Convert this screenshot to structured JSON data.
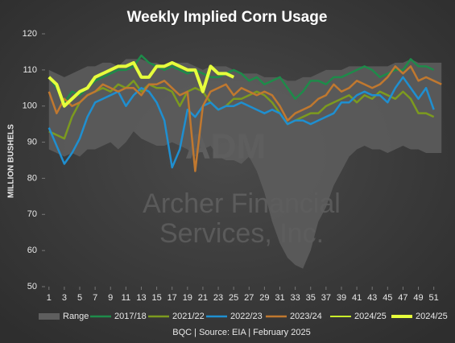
{
  "chart_data": {
    "type": "line",
    "title": "Weekly Implied Corn Usage",
    "y_label": "MILLION BUSHELS",
    "watermark": [
      "ADM",
      "Archer Financial",
      "Services, Inc."
    ],
    "footer": "BQC | Source: EIA | February 2025",
    "x": [
      1,
      2,
      3,
      4,
      5,
      6,
      7,
      8,
      9,
      10,
      11,
      12,
      13,
      14,
      15,
      16,
      17,
      18,
      19,
      20,
      21,
      22,
      23,
      24,
      25,
      26,
      27,
      28,
      29,
      30,
      31,
      32,
      33,
      34,
      35,
      36,
      37,
      38,
      39,
      40,
      41,
      42,
      43,
      44,
      45,
      46,
      47,
      48,
      49,
      50,
      51,
      52
    ],
    "xlim": [
      0.5,
      52.5
    ],
    "xticks": [
      1,
      3,
      5,
      7,
      9,
      11,
      13,
      15,
      17,
      19,
      21,
      23,
      25,
      27,
      29,
      31,
      33,
      35,
      37,
      39,
      41,
      43,
      45,
      47,
      49,
      51
    ],
    "ylim": [
      50,
      120
    ],
    "yticks": [
      50,
      60,
      70,
      80,
      90,
      100,
      110,
      120
    ],
    "range": {
      "name": "Range",
      "color": "#5e5e5e",
      "low": [
        88,
        87,
        86,
        87,
        86,
        88,
        88,
        89,
        90,
        88,
        90,
        93,
        91,
        90,
        89,
        89,
        90,
        89,
        88,
        86,
        88,
        89,
        86,
        85,
        85,
        84,
        86,
        82,
        76,
        68,
        62,
        58,
        56,
        55,
        60,
        68,
        72,
        78,
        82,
        86,
        88,
        89,
        88,
        88,
        87,
        88,
        89,
        88,
        88,
        87,
        87,
        87
      ],
      "high": [
        110,
        109,
        108,
        109,
        110,
        111,
        111,
        112,
        112,
        111,
        113,
        113,
        113,
        112,
        112,
        111,
        112,
        112,
        112,
        111,
        110,
        111,
        111,
        111,
        110,
        109,
        109,
        109,
        108,
        108,
        108,
        107,
        107,
        108,
        108,
        109,
        110,
        110,
        110,
        111,
        111,
        111,
        111,
        111,
        111,
        112,
        112,
        113,
        112,
        112,
        112,
        112
      ]
    },
    "series": [
      {
        "name": "2017/18",
        "color": "#1e8b4a",
        "width": 2.5,
        "values": [
          108,
          105,
          101,
          104,
          103,
          105,
          107,
          108,
          109,
          110,
          110,
          111,
          114,
          112,
          111,
          110,
          111,
          110,
          109,
          110,
          109,
          108,
          108,
          109,
          110,
          109,
          107,
          108,
          106,
          107,
          108,
          105,
          102,
          104,
          107,
          107,
          106,
          108,
          108,
          109,
          110,
          111,
          110,
          108,
          109,
          110,
          110,
          113,
          111,
          111,
          110,
          null
        ]
      },
      {
        "name": "2021/22",
        "color": "#7c9a1f",
        "width": 2.5,
        "values": [
          93,
          92,
          91,
          97,
          101,
          103,
          104,
          105,
          104,
          106,
          105,
          107,
          104,
          106,
          105,
          105,
          104,
          100,
          104,
          105,
          104,
          101,
          99,
          100,
          102,
          102,
          103,
          104,
          103,
          101,
          98,
          95,
          96,
          97,
          98,
          98,
          100,
          101,
          102,
          103,
          101,
          103,
          102,
          104,
          103,
          102,
          104,
          102,
          98,
          98,
          97,
          null
        ]
      },
      {
        "name": "2022/23",
        "color": "#1f8fd0",
        "width": 2.5,
        "values": [
          94,
          89,
          84,
          87,
          91,
          97,
          101,
          102,
          103,
          104,
          100,
          103,
          105,
          104,
          101,
          96,
          83,
          88,
          99,
          97,
          100,
          101,
          99,
          100,
          100,
          101,
          100,
          99,
          98,
          99,
          98,
          95,
          96,
          96,
          95,
          96,
          97,
          98,
          101,
          101,
          103,
          104,
          103,
          103,
          101,
          105,
          108,
          105,
          102,
          105,
          99,
          null
        ]
      },
      {
        "name": "2023/24",
        "color": "#c0782f",
        "width": 2.5,
        "values": [
          104,
          98,
          102,
          100,
          101,
          103,
          104,
          106,
          105,
          104,
          105,
          105,
          103,
          106,
          106,
          107,
          105,
          103,
          104,
          82,
          100,
          104,
          105,
          106,
          103,
          105,
          104,
          103,
          104,
          103,
          100,
          96,
          98,
          99,
          100,
          102,
          103,
          106,
          104,
          105,
          107,
          106,
          105,
          106,
          108,
          111,
          109,
          111,
          107,
          108,
          107,
          106
        ]
      },
      {
        "name": "2024/25",
        "color": "#c8f02a",
        "width": 2,
        "values": [
          108,
          106,
          100,
          102,
          104,
          105,
          108,
          109,
          110,
          111,
          111,
          112,
          108,
          108,
          111,
          111,
          112,
          111,
          110,
          110,
          104,
          111,
          109,
          109,
          108,
          null,
          null,
          null,
          null,
          null,
          null,
          null,
          null,
          null,
          null,
          null,
          null,
          null,
          null,
          null,
          null,
          null,
          null,
          null,
          null,
          null,
          null,
          null,
          null,
          null,
          null,
          null
        ]
      },
      {
        "name": "2024/25",
        "color": "#e6ff3c",
        "width": 4,
        "values": [
          108,
          106,
          100,
          102,
          104,
          105,
          108,
          109,
          110,
          111,
          111,
          112,
          108,
          108,
          111,
          111,
          112,
          111,
          110,
          110,
          104,
          111,
          109,
          109,
          108,
          null,
          null,
          null,
          null,
          null,
          null,
          null,
          null,
          null,
          null,
          null,
          null,
          null,
          null,
          null,
          null,
          null,
          null,
          null,
          null,
          null,
          null,
          null,
          null,
          null,
          null,
          null
        ]
      }
    ]
  }
}
